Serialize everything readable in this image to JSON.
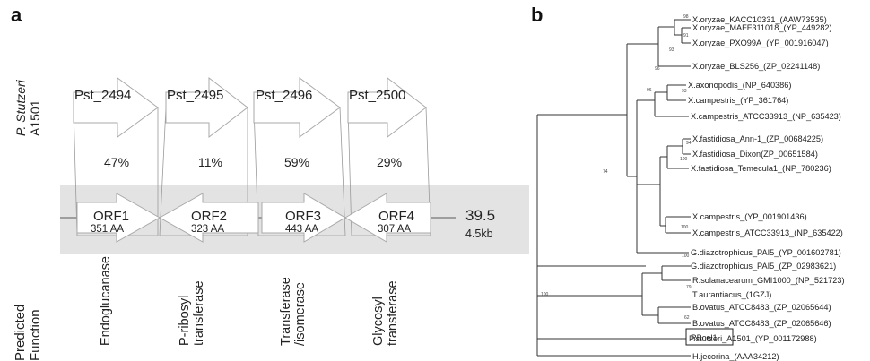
{
  "panel_a": {
    "letter": "a",
    "organism": "P. Stutzeri",
    "strain": "A1501",
    "pst_genes": [
      {
        "label": "Pst_2494",
        "identity": "47%"
      },
      {
        "label": "Pst_2495",
        "identity": "11%"
      },
      {
        "label": "Pst_2496",
        "identity": "59%"
      },
      {
        "label": "Pst_2500",
        "identity": "29%"
      }
    ],
    "orfs": [
      {
        "name": "ORF1",
        "length": "351 AA",
        "direction": "right"
      },
      {
        "name": "ORF2",
        "length": "323 AA",
        "direction": "left"
      },
      {
        "name": "ORF3",
        "length": "443 AA",
        "direction": "right"
      },
      {
        "name": "ORF4",
        "length": "307 AA",
        "direction": "left"
      }
    ],
    "insert_value": "39.5",
    "insert_size": "4.5kb",
    "function_heading": [
      "Predicted",
      "Function"
    ],
    "functions": [
      [
        "Endoglucanase"
      ],
      [
        "P-ribosyl",
        "transferase"
      ],
      [
        "Transferase",
        "/isomerase"
      ],
      [
        "Glycosyl",
        "transferase"
      ]
    ]
  },
  "panel_b": {
    "letter": "b",
    "leaves": [
      "X.oryzae_KACC10331_(AAW73535)",
      "X.oryzae_MAFF311018_(YP_449282)",
      "X.oryzae_PXO99A_(YP_001916047)",
      "X.oryzae_BLS256_(ZP_02241148)",
      "X.axonopodis_(NP_640386)",
      "X.campestris_(YP_361764)",
      "X.campestris_ATCC33913_(NP_635423)",
      "X.fastidiosa_Ann-1_(ZP_00684225)",
      "X.fastidiosa_Dixon(ZP_00651584)",
      "X.fastidiosa_Temecula1_(NP_780236)",
      "X.campestris_(YP_001901436)",
      "X.campestris_ATCC33913_(NP_635422)",
      "G.diazotrophicus_PAI5_(YP_001602781)",
      "G.diazotrophicus_PAI5_(ZP_02983621)",
      "R.solanacearum_GMI1000_(NP_521723)",
      "T.aurantiacus_(1GZJ)",
      "B.ovatus_ATCC8483_(ZP_02065644)",
      "B.ovatus_ATCC8483_(ZP_02065646)",
      "P.stutzeri_A1501_(YP_001172988)",
      "RBcel1",
      "H.jecorina_(AAA34212)"
    ],
    "bootstrap": [
      "98",
      "91",
      "93",
      "96",
      "93",
      "96",
      "74",
      "94",
      "100",
      "100",
      "100",
      "79",
      "100",
      "62"
    ]
  }
}
